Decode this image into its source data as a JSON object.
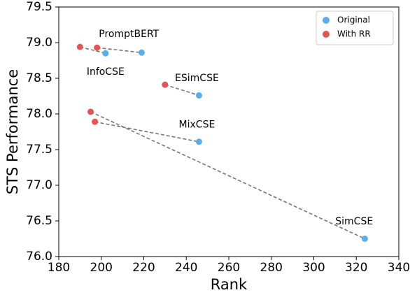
{
  "chart_data": {
    "type": "scatter",
    "xlabel": "Rank",
    "ylabel": "STS Performance",
    "xlim": [
      180,
      340
    ],
    "ylim": [
      76.0,
      79.5
    ],
    "xticks": [
      "180",
      "200",
      "220",
      "240",
      "260",
      "280",
      "300",
      "320",
      "340"
    ],
    "yticks": [
      "76.0",
      "76.5",
      "77.0",
      "77.5",
      "78.0",
      "78.5",
      "79.0",
      "79.5"
    ],
    "grid": false,
    "legend_position": "top-right",
    "series": [
      {
        "name": "Original",
        "color": "#5DADEC"
      },
      {
        "name": "With RR",
        "color": "#E05555"
      }
    ],
    "pairs": [
      {
        "model": "PromptBERT",
        "original": {
          "x": 219,
          "y": 78.86
        },
        "with_rr": {
          "x": 198,
          "y": 78.93
        }
      },
      {
        "model": "InfoCSE",
        "original": {
          "x": 202,
          "y": 78.85
        },
        "with_rr": {
          "x": 190,
          "y": 78.94
        }
      },
      {
        "model": "ESimCSE",
        "original": {
          "x": 246,
          "y": 78.26
        },
        "with_rr": {
          "x": 230,
          "y": 78.41
        }
      },
      {
        "model": "MixCSE",
        "original": {
          "x": 246,
          "y": 77.61
        },
        "with_rr": {
          "x": 197,
          "y": 77.89
        }
      },
      {
        "model": "SimCSE",
        "original": {
          "x": 324,
          "y": 76.25
        },
        "with_rr": {
          "x": 195,
          "y": 78.03
        }
      }
    ],
    "annotations": [
      {
        "text": "PromptBERT",
        "x": 213,
        "y": 79.12
      },
      {
        "text": "InfoCSE",
        "x": 202,
        "y": 78.59
      },
      {
        "text": "ESimCSE",
        "x": 245,
        "y": 78.5
      },
      {
        "text": "MixCSE",
        "x": 245,
        "y": 77.85
      },
      {
        "text": "SimCSE",
        "x": 319,
        "y": 76.49
      }
    ],
    "connector_style": "dashed",
    "connector_color": "#777777"
  }
}
